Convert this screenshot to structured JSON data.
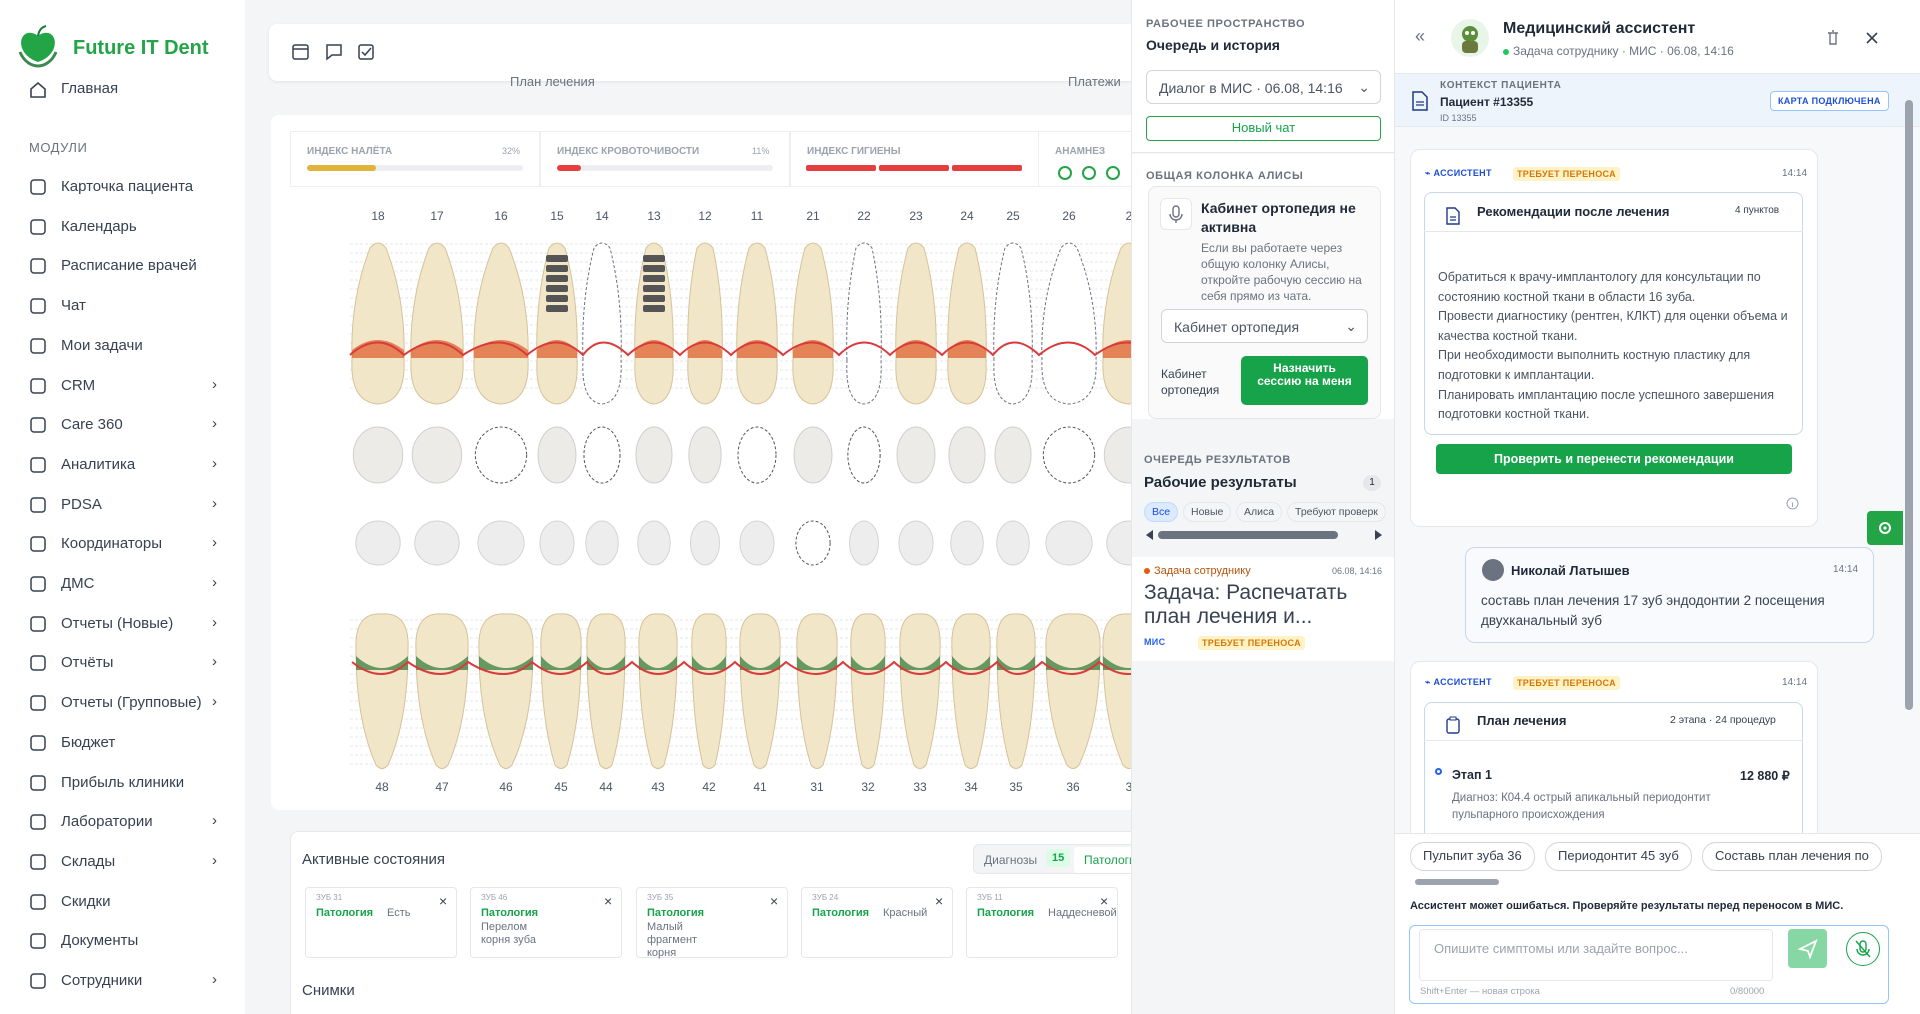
{
  "sidebar": {
    "brand": "Future IT Dent",
    "home": "Главная",
    "section": "МОДУЛИ",
    "items": [
      {
        "label": "Карточка пациента",
        "expandable": false
      },
      {
        "label": "Календарь",
        "expandable": false
      },
      {
        "label": "Расписание врачей",
        "expandable": false
      },
      {
        "label": "Чат",
        "expandable": false
      },
      {
        "label": "Мои задачи",
        "expandable": false
      },
      {
        "label": "CRM",
        "expandable": true
      },
      {
        "label": "Care 360",
        "expandable": true
      },
      {
        "label": "Аналитика",
        "expandable": true
      },
      {
        "label": "PDSA",
        "expandable": true
      },
      {
        "label": "Координаторы",
        "expandable": true
      },
      {
        "label": "ДМС",
        "expandable": true
      },
      {
        "label": "Отчеты (Новые)",
        "expandable": true
      },
      {
        "label": "Отчёты",
        "expandable": true
      },
      {
        "label": "Отчеты (Групповые)",
        "expandable": true
      },
      {
        "label": "Бюджет",
        "expandable": false
      },
      {
        "label": "Прибыль клиники",
        "expandable": false
      },
      {
        "label": "Лаборатории",
        "expandable": true
      },
      {
        "label": "Склады",
        "expandable": true
      },
      {
        "label": "Скидки",
        "expandable": false
      },
      {
        "label": "Документы",
        "expandable": false
      },
      {
        "label": "Сотрудники",
        "expandable": true
      }
    ]
  },
  "main": {
    "tabs": [
      "План лечения",
      "Платежи"
    ],
    "indices": [
      {
        "label": "ИНДЕКС НАЛЁТА",
        "value": "32%"
      },
      {
        "label": "ИНДЕКС КРОВОТОЧИВОСТИ",
        "value": "11%"
      },
      {
        "label": "ИНДЕКС ГИГИЕНЫ"
      },
      {
        "label": "АНАМНЕЗ"
      }
    ],
    "upper_teeth": [
      "18",
      "17",
      "16",
      "15",
      "14",
      "13",
      "12",
      "11",
      "21",
      "22",
      "23",
      "24",
      "25",
      "26",
      "2"
    ],
    "lower_teeth": [
      "48",
      "47",
      "46",
      "45",
      "44",
      "43",
      "42",
      "41",
      "31",
      "32",
      "33",
      "34",
      "35",
      "36",
      "3"
    ],
    "active_title": "Активные состояния",
    "filter_tabs": [
      {
        "label": "Диагнозы",
        "count": "15"
      },
      {
        "label": "Патологи"
      }
    ],
    "conditions": [
      {
        "tooth": "ЗУБ 31",
        "type": "Патология",
        "text": "Есть"
      },
      {
        "tooth": "ЗУБ 46",
        "type": "Патология",
        "text": "Перелом корня зуба"
      },
      {
        "tooth": "ЗУБ 35",
        "type": "Патология",
        "text": "Малый фрагмент корня"
      },
      {
        "tooth": "ЗУБ 24",
        "type": "Патология",
        "text": "Красный"
      },
      {
        "tooth": "ЗУБ 11",
        "type": "Патология",
        "text": "Наддесневой"
      }
    ],
    "images_title": "Снимки"
  },
  "workspace": {
    "eyebrow": "РАБОЧЕЕ ПРОСТРАНСТВО",
    "title": "Очередь и история",
    "dialog_select": "Диалог в МИС · 06.08, 14:16",
    "new_chat": "Новый чат",
    "alice_section": "ОБЩАЯ КОЛОНКА АЛИСЫ",
    "alice_title": "Кабинет ортопедия не активна",
    "alice_text": "Если вы работаете через общую колонку Алисы, откройте рабочую сессию на себя прямо из чата.",
    "cabinet_select": "Кабинет ортопедия",
    "cabinet_label": "Кабинет ортопедия",
    "assign_button": "Назначить сессию на меня",
    "queue_section": "ОЧЕРЕДЬ РЕЗУЛЬТАТОВ",
    "queue_title": "Рабочие результаты",
    "queue_count": "1",
    "filters": [
      "Все",
      "Новые",
      "Алиса",
      "Требуют проверк"
    ],
    "result": {
      "tag": "Задача сотруднику",
      "date": "06.08, 14:16",
      "title": "Задача: Распечатать план лечения и...",
      "badges": [
        "МИС",
        "ТРЕБУЕТ ПЕРЕНОСА"
      ]
    }
  },
  "assistant": {
    "title": "Медицинский ассистент",
    "subtitle": "Задача сотруднику · МИС · 06.08, 14:16",
    "context_label": "КОНТЕКСТ ПАЦИЕНТА",
    "patient": "Пациент #13355",
    "patient_id": "ID 13355",
    "card_badge": "КАРТА ПОДКЛЮЧЕНА",
    "messages": [
      {
        "role": "АССИСТЕНТ",
        "status": "ТРЕБУЕТ ПЕРЕНОСА",
        "time": "14:14",
        "card_title": "Рекомендации после лечения",
        "card_meta": "4 пунктов",
        "items": [
          "Обратиться к врачу-имплантологу для консультации по состоянию костной ткани в области 16 зуба.",
          "Провести диагностику (рентген, КЛКТ) для оценки объема и качества костной ткани.",
          "При необходимости выполнить костную пластику для подготовки к имплантации.",
          "Планировать имплантацию после успешного завершения подготовки костной ткани."
        ],
        "action": "Проверить и перенести рекомендации"
      },
      {
        "author": "Николай Латышев",
        "time": "14:14",
        "text": "составь план лечения 17 зуб эндодонтии 2 посещения двухканальный зуб"
      },
      {
        "role": "АССИСТЕНТ",
        "status": "ТРЕБУЕТ ПЕРЕНОСА",
        "time": "14:14",
        "card_title": "План лечения",
        "card_meta": "2 этапа · 24 процедур",
        "stage": "Этап 1",
        "stage_price": "12 880 ₽",
        "diagnosis": "Диагноз: К04.4 острый апикальный периодонтит пульпарного происхождения"
      }
    ],
    "suggestions": [
      "Пульпит зуба 36",
      "Периодонтит 45 зуб",
      "Составь план лечения по"
    ],
    "disclaimer": "Ассистент может ошибаться. Проверяйте результаты перед переносом в МИС.",
    "placeholder": "Опишите симптомы или задайте вопрос...",
    "hint": "Shift+Enter — новая строка",
    "counter": "0/80000"
  }
}
